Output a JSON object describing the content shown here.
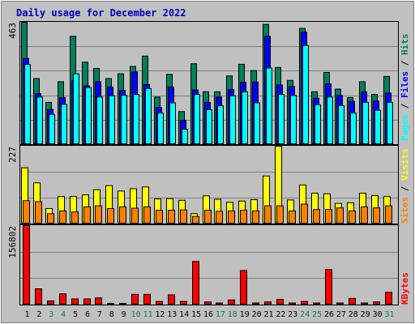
{
  "title": "Daily usage for December 2022",
  "colors": {
    "background": "#c0c0c0",
    "title": "#0000c0",
    "hits": "#00805c",
    "files": "#0000ff",
    "pages": "#00ffff",
    "visits": "#ffff00",
    "sites": "#ff8000",
    "kbytes": "#ff0000",
    "weekday_tick": "#000000",
    "weekend_tick": "#00805c",
    "separator": "#000000"
  },
  "right_labels": {
    "top": [
      "Pages",
      "Files",
      "Hits"
    ],
    "middle": [
      "Sites",
      "Visits"
    ],
    "bottom": [
      "KBytes"
    ],
    "separator": " / "
  },
  "chart_data": [
    {
      "type": "bar",
      "panel": "hits-files-pages",
      "ymax_label": "463",
      "ylim": [
        0,
        463
      ],
      "categories": [
        "1",
        "2",
        "3",
        "4",
        "5",
        "6",
        "7",
        "8",
        "9",
        "10",
        "11",
        "12",
        "13",
        "14",
        "15",
        "16",
        "17",
        "18",
        "19",
        "20",
        "21",
        "22",
        "23",
        "24",
        "25",
        "26",
        "27",
        "28",
        "29",
        "30",
        "31"
      ],
      "weekend_days": [
        "3",
        "4",
        "10",
        "11",
        "17",
        "18",
        "24",
        "25",
        "31"
      ],
      "series": [
        {
          "name": "Hits",
          "values": [
            463,
            250,
            160,
            238,
            410,
            312,
            288,
            250,
            268,
            296,
            335,
            180,
            266,
            125,
            306,
            200,
            200,
            260,
            304,
            280,
            455,
            292,
            243,
            440,
            200,
            273,
            210,
            178,
            238,
            190,
            258
          ]
        },
        {
          "name": "Files",
          "values": [
            326,
            193,
            133,
            178,
            243,
            222,
            238,
            218,
            205,
            275,
            227,
            141,
            218,
            92,
            207,
            160,
            180,
            208,
            236,
            237,
            410,
            226,
            220,
            426,
            176,
            230,
            186,
            164,
            200,
            165,
            195
          ]
        },
        {
          "name": "Pages",
          "values": [
            303,
            180,
            114,
            152,
            268,
            216,
            180,
            185,
            187,
            190,
            212,
            120,
            158,
            58,
            190,
            132,
            147,
            185,
            200,
            158,
            290,
            190,
            186,
            375,
            151,
            180,
            148,
            120,
            160,
            130,
            160
          ]
        }
      ]
    },
    {
      "type": "bar",
      "panel": "visits-sites",
      "ymax_label": "227",
      "ylim": [
        0,
        227
      ],
      "categories": [
        "1",
        "2",
        "3",
        "4",
        "5",
        "6",
        "7",
        "8",
        "9",
        "10",
        "11",
        "12",
        "13",
        "14",
        "15",
        "16",
        "17",
        "18",
        "19",
        "20",
        "21",
        "22",
        "23",
        "24",
        "25",
        "26",
        "27",
        "28",
        "29",
        "30",
        "31"
      ],
      "weekend_days": [
        "3",
        "4",
        "10",
        "11",
        "17",
        "18",
        "24",
        "25",
        "31"
      ],
      "series": [
        {
          "name": "Visits",
          "values": [
            164,
            120,
            45,
            80,
            80,
            85,
            100,
            112,
            96,
            103,
            108,
            73,
            74,
            69,
            30,
            82,
            72,
            63,
            67,
            71,
            140,
            227,
            70,
            114,
            90,
            88,
            60,
            62,
            90,
            83,
            80
          ]
        },
        {
          "name": "Sites",
          "values": [
            68,
            65,
            30,
            38,
            35,
            50,
            53,
            45,
            50,
            46,
            50,
            40,
            40,
            41,
            22,
            40,
            37,
            38,
            40,
            38,
            53,
            53,
            38,
            58,
            42,
            42,
            47,
            38,
            50,
            47,
            53
          ]
        }
      ]
    },
    {
      "type": "bar",
      "panel": "kbytes",
      "ymax_label": "156802",
      "ylim": [
        0,
        156802
      ],
      "categories": [
        "1",
        "2",
        "3",
        "4",
        "5",
        "6",
        "7",
        "8",
        "9",
        "10",
        "11",
        "12",
        "13",
        "14",
        "15",
        "16",
        "17",
        "18",
        "19",
        "20",
        "21",
        "22",
        "23",
        "24",
        "25",
        "26",
        "27",
        "28",
        "29",
        "30",
        "31"
      ],
      "weekend_days": [
        "3",
        "4",
        "10",
        "11",
        "17",
        "18",
        "24",
        "25",
        "31"
      ],
      "series": [
        {
          "name": "KBytes",
          "values": [
            156802,
            32000,
            8000,
            22000,
            12000,
            12000,
            14000,
            3000,
            3000,
            21000,
            21000,
            7000,
            20000,
            7000,
            86000,
            6000,
            4000,
            10000,
            68000,
            4000,
            6000,
            11000,
            4000,
            7000,
            4000,
            70000,
            4000,
            13000,
            4000,
            6000,
            25000
          ]
        }
      ]
    }
  ]
}
